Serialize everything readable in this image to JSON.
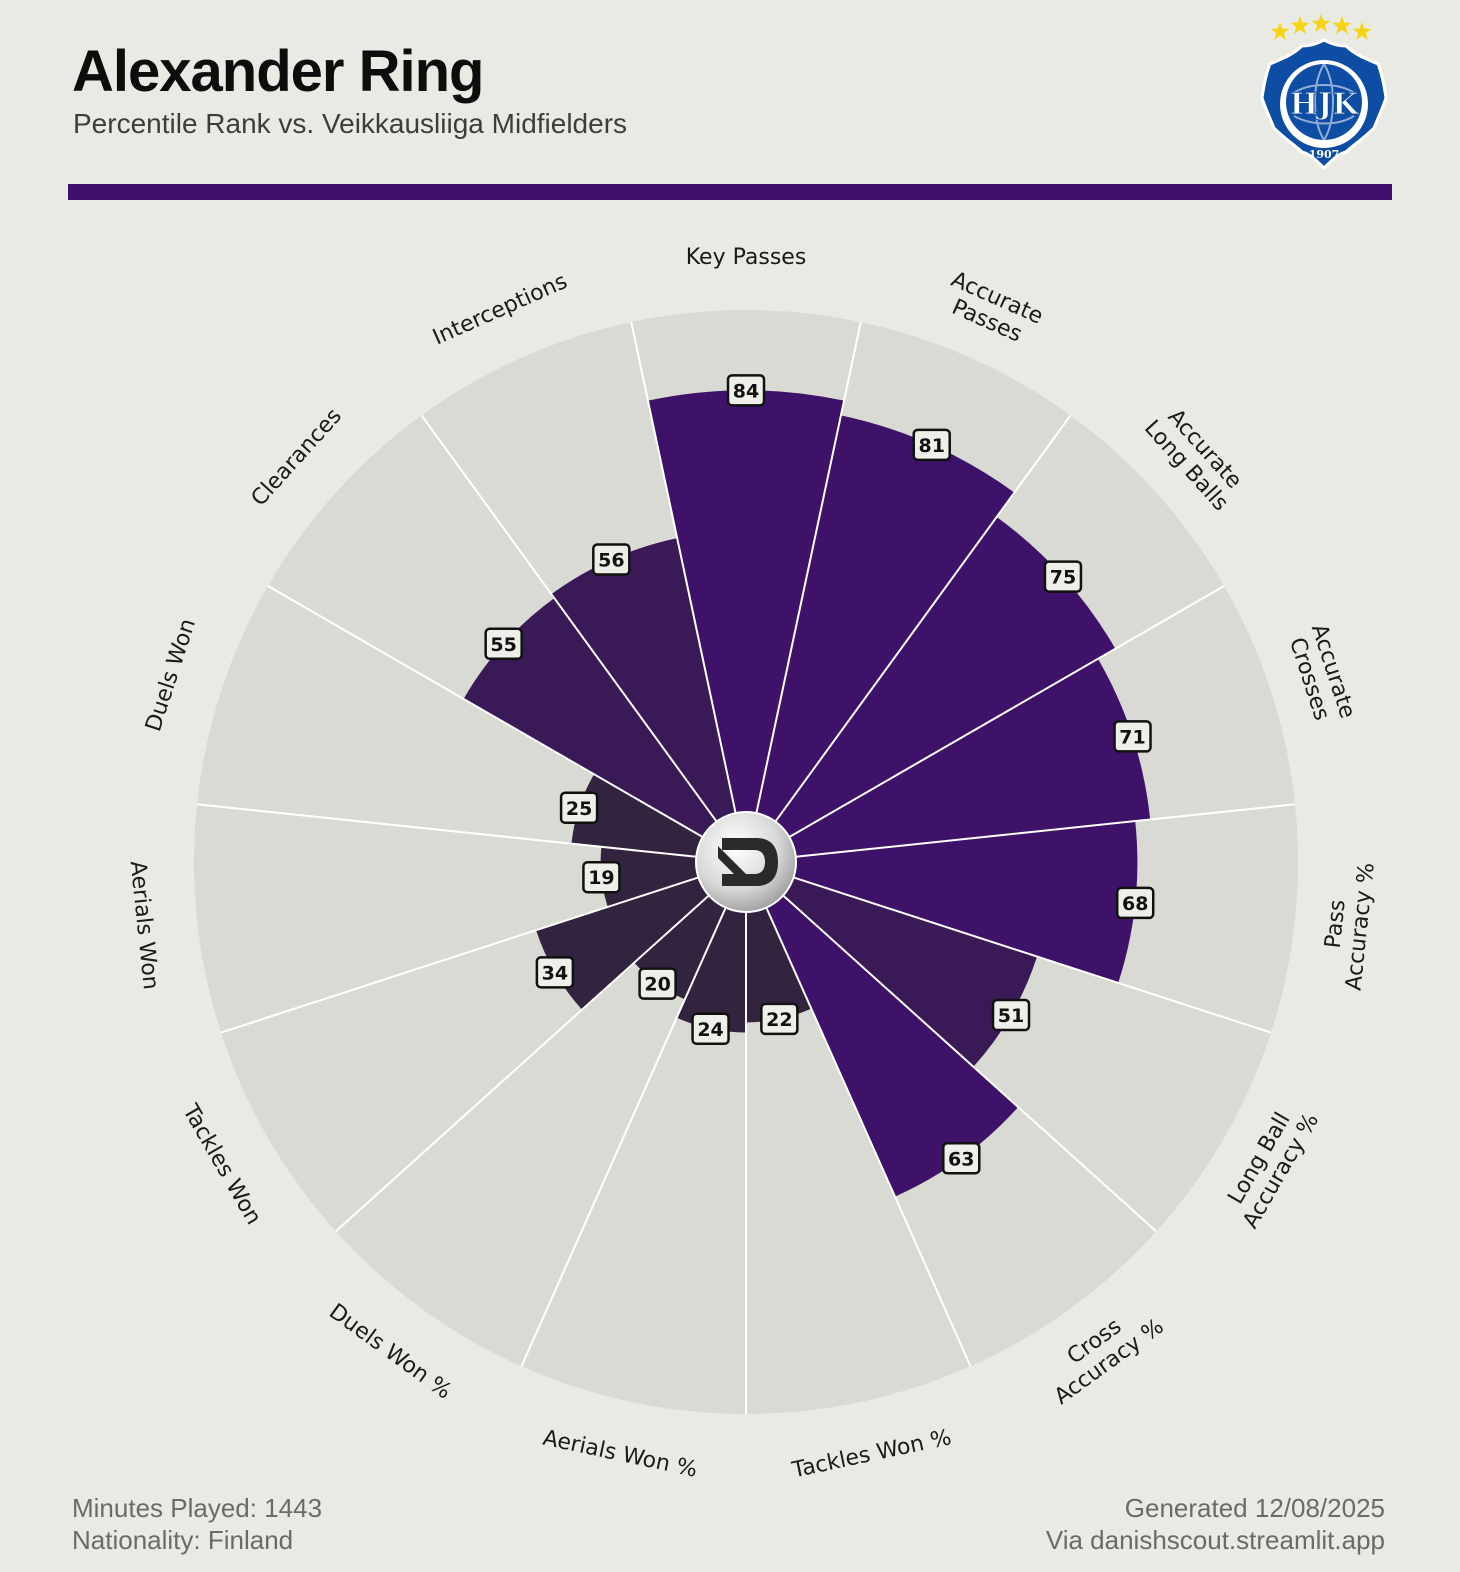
{
  "header": {
    "title": "Alexander Ring",
    "subtitle": "Percentile Rank vs. Veikkausliiga Midfielders"
  },
  "badge": {
    "club_text": "HJK",
    "year": "1907",
    "stars": 5,
    "colors": {
      "blue": "#0E4DA4",
      "star": "#F5D416"
    }
  },
  "footer": {
    "minutes": "Minutes Played: 1443",
    "nationality": "Nationality: Finland",
    "generated": "Generated 12/08/2025",
    "via": "Via danishscout.streamlit.app"
  },
  "colors": {
    "background": "#EAEAE5",
    "wedge_bg": "#DADAD4",
    "accent_bar": "#3F0F6C",
    "high": "#3E1268",
    "mid": "#3A1957",
    "low": "#32233F"
  },
  "chart_data": {
    "type": "polar-bar",
    "rmax": 100,
    "categories": [
      "Key Passes",
      "Accurate Passes",
      "Accurate Long Balls",
      "Accurate Crosses",
      "Pass Accuracy %",
      "Long Ball Accuracy %",
      "Cross Accuracy %",
      "Tackles Won %",
      "Aerials Won %",
      "Duels Won %",
      "Tackles Won",
      "Aerials Won",
      "Duels Won",
      "Clearances",
      "Interceptions"
    ],
    "label_lines": [
      [
        "Key Passes"
      ],
      [
        "Accurate",
        "Passes"
      ],
      [
        "Accurate",
        "Long Balls"
      ],
      [
        "Accurate",
        "Crosses"
      ],
      [
        "Pass",
        "Accuracy %"
      ],
      [
        "Long Ball",
        "Accuracy %"
      ],
      [
        "Cross",
        "Accuracy %"
      ],
      [
        "Tackles Won %"
      ],
      [
        "Aerials Won %"
      ],
      [
        "Duels Won %"
      ],
      [
        "Tackles Won"
      ],
      [
        "Aerials Won"
      ],
      [
        "Duels Won"
      ],
      [
        "Clearances"
      ],
      [
        "Interceptions"
      ]
    ],
    "values": [
      84,
      81,
      75,
      71,
      68,
      51,
      63,
      22,
      24,
      20,
      34,
      19,
      25,
      55,
      56
    ]
  }
}
